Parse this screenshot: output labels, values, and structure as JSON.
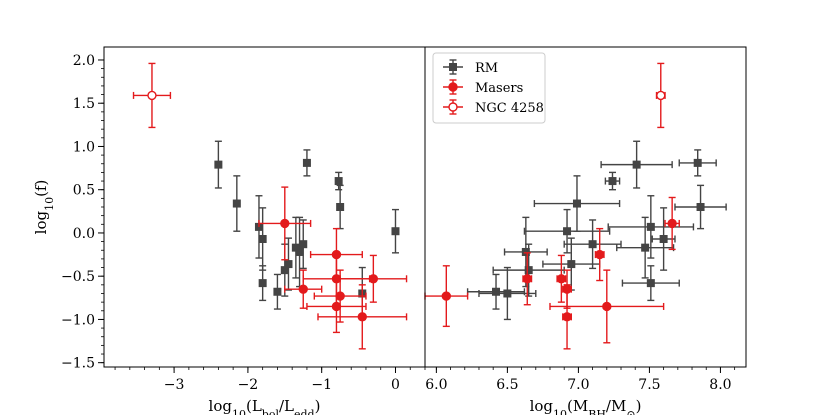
{
  "colors": {
    "rm": "#444444",
    "masers": "#e31a1c",
    "ngc": "#e31a1c",
    "axis": "#000000"
  },
  "chart_data": [
    {
      "type": "scatter",
      "xlabel": "log₁₀(L_bol/L_edd)",
      "ylabel": "log₁₀(f)",
      "xlim": [
        -3.95,
        0.4
      ],
      "ylim": [
        -1.55,
        2.15
      ],
      "xticks": [
        -3,
        -2,
        -1,
        0
      ],
      "xtick_labels": [
        "−3",
        "−2",
        "−1",
        "0"
      ],
      "yticks": [
        -1.5,
        -1.0,
        -0.5,
        0.0,
        0.5,
        1.0,
        1.5,
        2.0
      ],
      "ytick_labels": [
        "−1.5",
        "−1.0",
        "−0.5",
        "0.0",
        "0.5",
        "1.0",
        "1.5",
        "2.0"
      ],
      "series": [
        {
          "key": "rm",
          "marker": "square",
          "filled": true,
          "points": [
            {
              "x": -2.4,
              "y": 0.79,
              "xerr": 0,
              "yerr": 0.27
            },
            {
              "x": -2.15,
              "y": 0.34,
              "xerr": 0,
              "yerr": 0.32
            },
            {
              "x": -1.85,
              "y": 0.07,
              "xerr": 0,
              "yerr": 0.36
            },
            {
              "x": -1.8,
              "y": -0.07,
              "xerr": 0,
              "yerr": 0.36
            },
            {
              "x": -1.8,
              "y": -0.58,
              "xerr": 0,
              "yerr": 0.2
            },
            {
              "x": -1.6,
              "y": -0.68,
              "xerr": 0,
              "yerr": 0.2
            },
            {
              "x": -1.5,
              "y": -0.43,
              "xerr": 0,
              "yerr": 0.3
            },
            {
              "x": -1.45,
              "y": -0.36,
              "xerr": 0,
              "yerr": 0.3
            },
            {
              "x": -1.35,
              "y": -0.17,
              "xerr": 0,
              "yerr": 0.35
            },
            {
              "x": -1.3,
              "y": -0.22,
              "xerr": 0,
              "yerr": 0.4
            },
            {
              "x": -1.25,
              "y": -0.13,
              "xerr": 0,
              "yerr": 0.28
            },
            {
              "x": -1.2,
              "y": 0.81,
              "xerr": 0,
              "yerr": 0.15
            },
            {
              "x": -0.77,
              "y": 0.6,
              "xerr": 0,
              "yerr": 0.1
            },
            {
              "x": -0.75,
              "y": 0.3,
              "xerr": 0,
              "yerr": 0.25
            },
            {
              "x": -0.45,
              "y": -0.7,
              "xerr": 0,
              "yerr": 0.3
            },
            {
              "x": 0.0,
              "y": 0.02,
              "xerr": 0,
              "yerr": 0.25
            }
          ]
        },
        {
          "key": "masers",
          "marker": "circle",
          "filled": true,
          "points": [
            {
              "x": -1.5,
              "y": 0.11,
              "xerr": 0.35,
              "yerr": 0.42
            },
            {
              "x": -1.25,
              "y": -0.65,
              "xerr": 0.25,
              "yerr": 0.22
            },
            {
              "x": -0.8,
              "y": -0.25,
              "xerr": 0.35,
              "yerr": 0.3
            },
            {
              "x": -0.8,
              "y": -0.53,
              "xerr": 0.45,
              "yerr": 0.3
            },
            {
              "x": -0.8,
              "y": -0.85,
              "xerr": 0.4,
              "yerr": 0.3
            },
            {
              "x": -0.75,
              "y": -0.73,
              "xerr": 0.35,
              "yerr": 0.3
            },
            {
              "x": -0.3,
              "y": -0.53,
              "xerr": 0.45,
              "yerr": 0.27
            },
            {
              "x": -0.45,
              "y": -0.97,
              "xerr": 0.6,
              "yerr": 0.37
            }
          ]
        },
        {
          "key": "ngc",
          "marker": "circle",
          "filled": false,
          "points": [
            {
              "x": -3.3,
              "y": 1.59,
              "xerr": 0.25,
              "yerr": 0.37
            }
          ]
        }
      ]
    },
    {
      "type": "scatter",
      "xlabel": "log₁₀(M_BH/M_⊙)",
      "ylabel": "",
      "xlim": [
        5.92,
        8.18
      ],
      "ylim": [
        -1.55,
        2.15
      ],
      "xticks": [
        6.0,
        6.5,
        7.0,
        7.5,
        8.0
      ],
      "xtick_labels": [
        "6.0",
        "6.5",
        "7.0",
        "7.5",
        "8.0"
      ],
      "legend": {
        "placement": "top-left",
        "entries": [
          {
            "key": "rm",
            "label": "RM"
          },
          {
            "key": "masers",
            "label": "Masers"
          },
          {
            "key": "ngc",
            "label": "NGC 4258"
          }
        ]
      },
      "series": [
        {
          "key": "rm",
          "marker": "square",
          "filled": true,
          "points": [
            {
              "x": 7.41,
              "y": 0.79,
              "xerr": 0.25,
              "yerr": 0.27
            },
            {
              "x": 7.84,
              "y": 0.81,
              "xerr": 0.13,
              "yerr": 0.15
            },
            {
              "x": 7.24,
              "y": 0.6,
              "xerr": 0.05,
              "yerr": 0.1
            },
            {
              "x": 7.86,
              "y": 0.3,
              "xerr": 0.18,
              "yerr": 0.25
            },
            {
              "x": 6.99,
              "y": 0.34,
              "xerr": 0.3,
              "yerr": 0.32
            },
            {
              "x": 7.51,
              "y": 0.07,
              "xerr": 0.3,
              "yerr": 0.36
            },
            {
              "x": 6.92,
              "y": 0.02,
              "xerr": 0.3,
              "yerr": 0.25
            },
            {
              "x": 7.1,
              "y": -0.13,
              "xerr": 0.2,
              "yerr": 0.28
            },
            {
              "x": 7.47,
              "y": -0.17,
              "xerr": 0.2,
              "yerr": 0.35
            },
            {
              "x": 7.6,
              "y": -0.07,
              "xerr": 0.08,
              "yerr": 0.36
            },
            {
              "x": 6.63,
              "y": -0.22,
              "xerr": 0.15,
              "yerr": 0.4
            },
            {
              "x": 6.65,
              "y": -0.43,
              "xerr": 0.25,
              "yerr": 0.3
            },
            {
              "x": 6.95,
              "y": -0.36,
              "xerr": 0.2,
              "yerr": 0.3
            },
            {
              "x": 7.51,
              "y": -0.58,
              "xerr": 0.2,
              "yerr": 0.2
            },
            {
              "x": 6.42,
              "y": -0.68,
              "xerr": 0.2,
              "yerr": 0.2
            },
            {
              "x": 6.5,
              "y": -0.7,
              "xerr": 0.2,
              "yerr": 0.3
            }
          ]
        },
        {
          "key": "masers",
          "marker": "circle",
          "filled": true,
          "points": [
            {
              "x": 7.66,
              "y": 0.11,
              "xerr": 0.05,
              "yerr": 0.3
            },
            {
              "x": 7.15,
              "y": -0.25,
              "xerr": 0.03,
              "yerr": 0.3
            },
            {
              "x": 6.64,
              "y": -0.53,
              "xerr": 0.03,
              "yerr": 0.3
            },
            {
              "x": 6.88,
              "y": -0.53,
              "xerr": 0.03,
              "yerr": 0.27
            },
            {
              "x": 6.92,
              "y": -0.65,
              "xerr": 0.03,
              "yerr": 0.22
            },
            {
              "x": 6.07,
              "y": -0.73,
              "xerr": 0.15,
              "yerr": 0.35
            },
            {
              "x": 7.2,
              "y": -0.85,
              "xerr": 0.4,
              "yerr": 0.42
            },
            {
              "x": 6.92,
              "y": -0.97,
              "xerr": 0.03,
              "yerr": 0.37
            }
          ]
        },
        {
          "key": "ngc",
          "marker": "circle",
          "filled": false,
          "points": [
            {
              "x": 7.58,
              "y": 1.59,
              "xerr": 0.03,
              "yerr": 0.37
            }
          ]
        }
      ]
    }
  ]
}
